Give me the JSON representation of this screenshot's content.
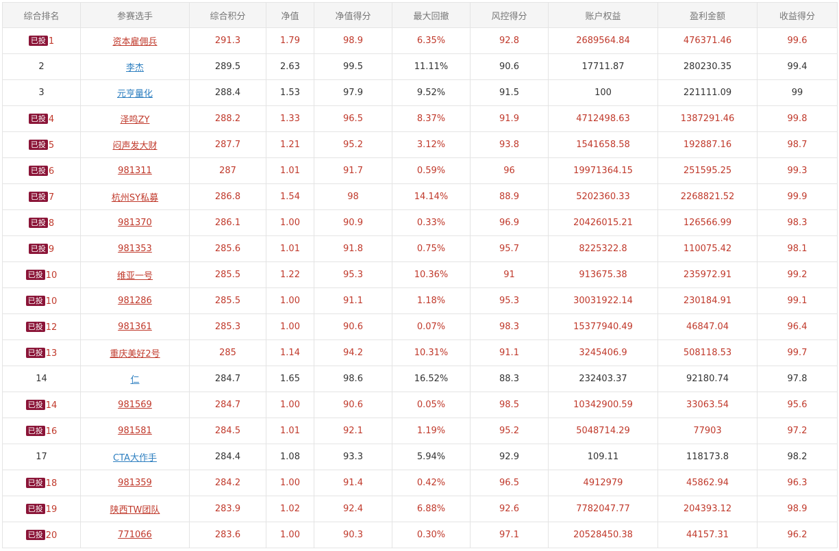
{
  "table": {
    "headers": [
      "综合排名",
      "参赛选手",
      "综合积分",
      "净值",
      "净值得分",
      "最大回撤",
      "风控得分",
      "账户权益",
      "盈利金额",
      "收益得分"
    ],
    "badge_label": "已投",
    "rows": [
      {
        "invested": true,
        "rank": "1",
        "player": "资本雇佣兵",
        "score": "291.3",
        "nav": "1.79",
        "nav_score": "98.9",
        "max_drawdown": "6.35%",
        "risk_score": "92.8",
        "equity": "2689564.84",
        "profit": "476371.46",
        "return_score": "99.6"
      },
      {
        "invested": false,
        "rank": "2",
        "player": "李杰",
        "score": "289.5",
        "nav": "2.63",
        "nav_score": "99.5",
        "max_drawdown": "11.11%",
        "risk_score": "90.6",
        "equity": "17711.87",
        "profit": "280230.35",
        "return_score": "99.4"
      },
      {
        "invested": false,
        "rank": "3",
        "player": "元亨量化",
        "score": "288.4",
        "nav": "1.53",
        "nav_score": "97.9",
        "max_drawdown": "9.52%",
        "risk_score": "91.5",
        "equity": "100",
        "profit": "221111.09",
        "return_score": "99"
      },
      {
        "invested": true,
        "rank": "4",
        "player": "泽鸣ZY",
        "score": "288.2",
        "nav": "1.33",
        "nav_score": "96.5",
        "max_drawdown": "8.37%",
        "risk_score": "91.9",
        "equity": "4712498.63",
        "profit": "1387291.46",
        "return_score": "99.8"
      },
      {
        "invested": true,
        "rank": "5",
        "player": "闷声发大财",
        "score": "287.7",
        "nav": "1.21",
        "nav_score": "95.2",
        "max_drawdown": "3.12%",
        "risk_score": "93.8",
        "equity": "1541658.58",
        "profit": "192887.16",
        "return_score": "98.7"
      },
      {
        "invested": true,
        "rank": "6",
        "player": "981311",
        "score": "287",
        "nav": "1.01",
        "nav_score": "91.7",
        "max_drawdown": "0.59%",
        "risk_score": "96",
        "equity": "19971364.15",
        "profit": "251595.25",
        "return_score": "99.3"
      },
      {
        "invested": true,
        "rank": "7",
        "player": "杭州SY私募",
        "score": "286.8",
        "nav": "1.54",
        "nav_score": "98",
        "max_drawdown": "14.14%",
        "risk_score": "88.9",
        "equity": "5202360.33",
        "profit": "2268821.52",
        "return_score": "99.9"
      },
      {
        "invested": true,
        "rank": "8",
        "player": "981370",
        "score": "286.1",
        "nav": "1.00",
        "nav_score": "90.9",
        "max_drawdown": "0.33%",
        "risk_score": "96.9",
        "equity": "20426015.21",
        "profit": "126566.99",
        "return_score": "98.3"
      },
      {
        "invested": true,
        "rank": "9",
        "player": "981353",
        "score": "285.6",
        "nav": "1.01",
        "nav_score": "91.8",
        "max_drawdown": "0.75%",
        "risk_score": "95.7",
        "equity": "8225322.8",
        "profit": "110075.42",
        "return_score": "98.1"
      },
      {
        "invested": true,
        "rank": "10",
        "player": "维亚一号",
        "score": "285.5",
        "nav": "1.22",
        "nav_score": "95.3",
        "max_drawdown": "10.36%",
        "risk_score": "91",
        "equity": "913675.38",
        "profit": "235972.91",
        "return_score": "99.2"
      },
      {
        "invested": true,
        "rank": "10",
        "player": "981286",
        "score": "285.5",
        "nav": "1.00",
        "nav_score": "91.1",
        "max_drawdown": "1.18%",
        "risk_score": "95.3",
        "equity": "30031922.14",
        "profit": "230184.91",
        "return_score": "99.1"
      },
      {
        "invested": true,
        "rank": "12",
        "player": "981361",
        "score": "285.3",
        "nav": "1.00",
        "nav_score": "90.6",
        "max_drawdown": "0.07%",
        "risk_score": "98.3",
        "equity": "15377940.49",
        "profit": "46847.04",
        "return_score": "96.4"
      },
      {
        "invested": true,
        "rank": "13",
        "player": "重庆美好2号",
        "score": "285",
        "nav": "1.14",
        "nav_score": "94.2",
        "max_drawdown": "10.31%",
        "risk_score": "91.1",
        "equity": "3245406.9",
        "profit": "508118.53",
        "return_score": "99.7"
      },
      {
        "invested": false,
        "rank": "14",
        "player": "仁",
        "score": "284.7",
        "nav": "1.65",
        "nav_score": "98.6",
        "max_drawdown": "16.52%",
        "risk_score": "88.3",
        "equity": "232403.37",
        "profit": "92180.74",
        "return_score": "97.8"
      },
      {
        "invested": true,
        "rank": "14",
        "player": "981569",
        "score": "284.7",
        "nav": "1.00",
        "nav_score": "90.6",
        "max_drawdown": "0.05%",
        "risk_score": "98.5",
        "equity": "10342900.59",
        "profit": "33063.54",
        "return_score": "95.6"
      },
      {
        "invested": true,
        "rank": "16",
        "player": "981581",
        "score": "284.5",
        "nav": "1.01",
        "nav_score": "92.1",
        "max_drawdown": "1.19%",
        "risk_score": "95.2",
        "equity": "5048714.29",
        "profit": "77903",
        "return_score": "97.2"
      },
      {
        "invested": false,
        "rank": "17",
        "player": "CTA大作手",
        "score": "284.4",
        "nav": "1.08",
        "nav_score": "93.3",
        "max_drawdown": "5.94%",
        "risk_score": "92.9",
        "equity": "109.11",
        "profit": "118173.8",
        "return_score": "98.2"
      },
      {
        "invested": true,
        "rank": "18",
        "player": "981359",
        "score": "284.2",
        "nav": "1.00",
        "nav_score": "91.4",
        "max_drawdown": "0.42%",
        "risk_score": "96.5",
        "equity": "4912979",
        "profit": "45862.94",
        "return_score": "96.3"
      },
      {
        "invested": true,
        "rank": "19",
        "player": "陕西TW团队",
        "score": "283.9",
        "nav": "1.02",
        "nav_score": "92.4",
        "max_drawdown": "6.88%",
        "risk_score": "92.6",
        "equity": "7782047.77",
        "profit": "204393.12",
        "return_score": "98.9"
      },
      {
        "invested": true,
        "rank": "20",
        "player": "771066",
        "score": "283.6",
        "nav": "1.00",
        "nav_score": "90.3",
        "max_drawdown": "0.30%",
        "risk_score": "97.1",
        "equity": "20528450.38",
        "profit": "44157.31",
        "return_score": "96.2"
      }
    ]
  },
  "colors": {
    "invested_text": "#c0392b",
    "plain_text": "#333333",
    "plain_link": "#2e7fc0",
    "badge_bg": "#8b1538",
    "header_bg": "#f5f5f5",
    "header_text": "#777777",
    "border": "#e4e4e4"
  }
}
